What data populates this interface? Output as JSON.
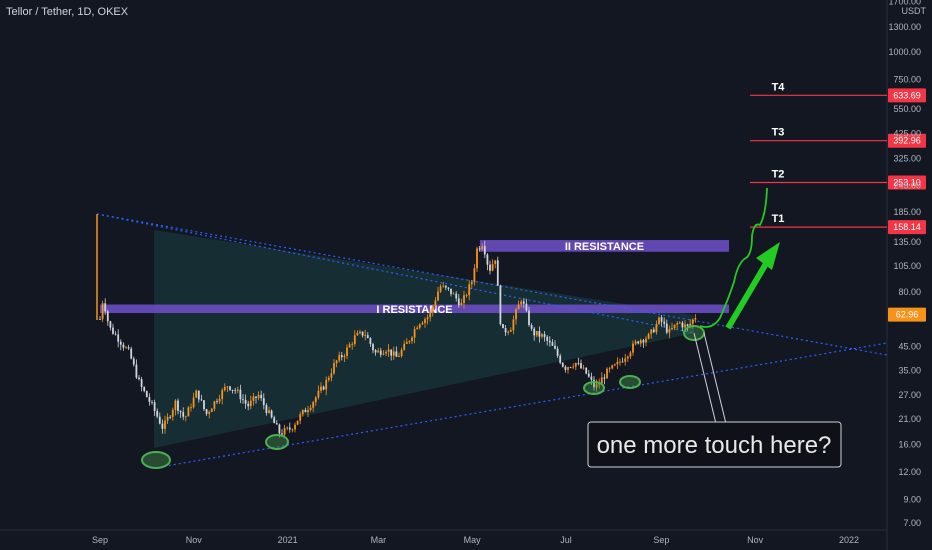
{
  "header": {
    "title": "Tellor / Tether, 1D, OKEX"
  },
  "axis": {
    "currency_label": "USDT"
  },
  "chart_data": {
    "type": "candlestick",
    "title": "Tellor / Tether, 1D, OKEX",
    "scale": "log",
    "ylim": [
      7,
      1800
    ],
    "y_ticks": [
      "1700.00",
      "1300.00",
      "1000.00",
      "750.00",
      "550.00",
      "425.00",
      "325.00",
      "245.00",
      "185.00",
      "135.00",
      "105.00",
      "80.00",
      "45.00",
      "35.00",
      "27.00",
      "21.00",
      "16.00",
      "12.00",
      "9.00",
      "7.00"
    ],
    "x_ticks": [
      "Sep",
      "Nov",
      "2021",
      "Mar",
      "May",
      "Jul",
      "Sep",
      "Nov",
      "2022"
    ],
    "x_range": [
      "2020-09-01",
      "2022-01-01"
    ],
    "last_price": {
      "label": "62.96",
      "value": 62.96
    },
    "price_path": [
      [
        "2020-09-01",
        60
      ],
      [
        "2020-09-03",
        75
      ],
      [
        "2020-09-07",
        55
      ],
      [
        "2020-09-12",
        50
      ],
      [
        "2020-09-20",
        42
      ],
      [
        "2020-09-27",
        30
      ],
      [
        "2020-10-05",
        24
      ],
      [
        "2020-10-12",
        19
      ],
      [
        "2020-10-20",
        25
      ],
      [
        "2020-10-26",
        21
      ],
      [
        "2020-11-03",
        28
      ],
      [
        "2020-11-09",
        22
      ],
      [
        "2020-11-16",
        26
      ],
      [
        "2020-11-23",
        30
      ],
      [
        "2020-11-29",
        28
      ],
      [
        "2020-12-06",
        24
      ],
      [
        "2020-12-13",
        27
      ],
      [
        "2020-12-20",
        22
      ],
      [
        "2020-12-27",
        18
      ],
      [
        "2021-01-03",
        19
      ],
      [
        "2021-01-10",
        22
      ],
      [
        "2021-01-17",
        25
      ],
      [
        "2021-01-25",
        30
      ],
      [
        "2021-02-01",
        38
      ],
      [
        "2021-02-07",
        42
      ],
      [
        "2021-02-14",
        50
      ],
      [
        "2021-02-20",
        52
      ],
      [
        "2021-02-27",
        42
      ],
      [
        "2021-03-06",
        44
      ],
      [
        "2021-03-13",
        40
      ],
      [
        "2021-03-20",
        47
      ],
      [
        "2021-03-27",
        58
      ],
      [
        "2021-04-03",
        62
      ],
      [
        "2021-04-10",
        85
      ],
      [
        "2021-04-17",
        80
      ],
      [
        "2021-04-24",
        70
      ],
      [
        "2021-05-01",
        90
      ],
      [
        "2021-05-04",
        125
      ],
      [
        "2021-05-08",
        135
      ],
      [
        "2021-05-12",
        100
      ],
      [
        "2021-05-16",
        115
      ],
      [
        "2021-05-20",
        52
      ],
      [
        "2021-05-26",
        55
      ],
      [
        "2021-06-02",
        75
      ],
      [
        "2021-06-09",
        52
      ],
      [
        "2021-06-16",
        50
      ],
      [
        "2021-06-23",
        44
      ],
      [
        "2021-06-30",
        36
      ],
      [
        "2021-07-07",
        38
      ],
      [
        "2021-07-14",
        34
      ],
      [
        "2021-07-20",
        29
      ],
      [
        "2021-07-27",
        34
      ],
      [
        "2021-08-03",
        37
      ],
      [
        "2021-08-10",
        42
      ],
      [
        "2021-08-17",
        48
      ],
      [
        "2021-08-24",
        50
      ],
      [
        "2021-08-31",
        60
      ],
      [
        "2021-09-06",
        52
      ],
      [
        "2021-09-12",
        58
      ],
      [
        "2021-09-18",
        55
      ],
      [
        "2021-09-24",
        62.96
      ]
    ],
    "resistance_zones": [
      {
        "label": "I RESISTANCE",
        "start": "2020-09-01",
        "end": "2021-10-15",
        "low": 64,
        "high": 70
      },
      {
        "label": "II RESISTANCE",
        "start": "2021-05-06",
        "end": "2021-10-15",
        "low": 122,
        "high": 138
      }
    ],
    "targets": [
      {
        "label": "T1",
        "value": 158.14,
        "value_label": "158.14"
      },
      {
        "label": "T2",
        "value": 253.1,
        "value_label": "253.10"
      },
      {
        "label": "T3",
        "value": 392.96,
        "value_label": "392.96"
      },
      {
        "label": "T4",
        "value": 633.69,
        "value_label": "633.69"
      }
    ],
    "annotation": "one more touch here?",
    "colors": {
      "up": "#f7931a",
      "down": "#d1d4dc",
      "resistance": "#6a4cc2",
      "target": "#f23645",
      "trendline": "#2962ff",
      "marker": "#4caf50",
      "projection": "#22cc22"
    }
  }
}
